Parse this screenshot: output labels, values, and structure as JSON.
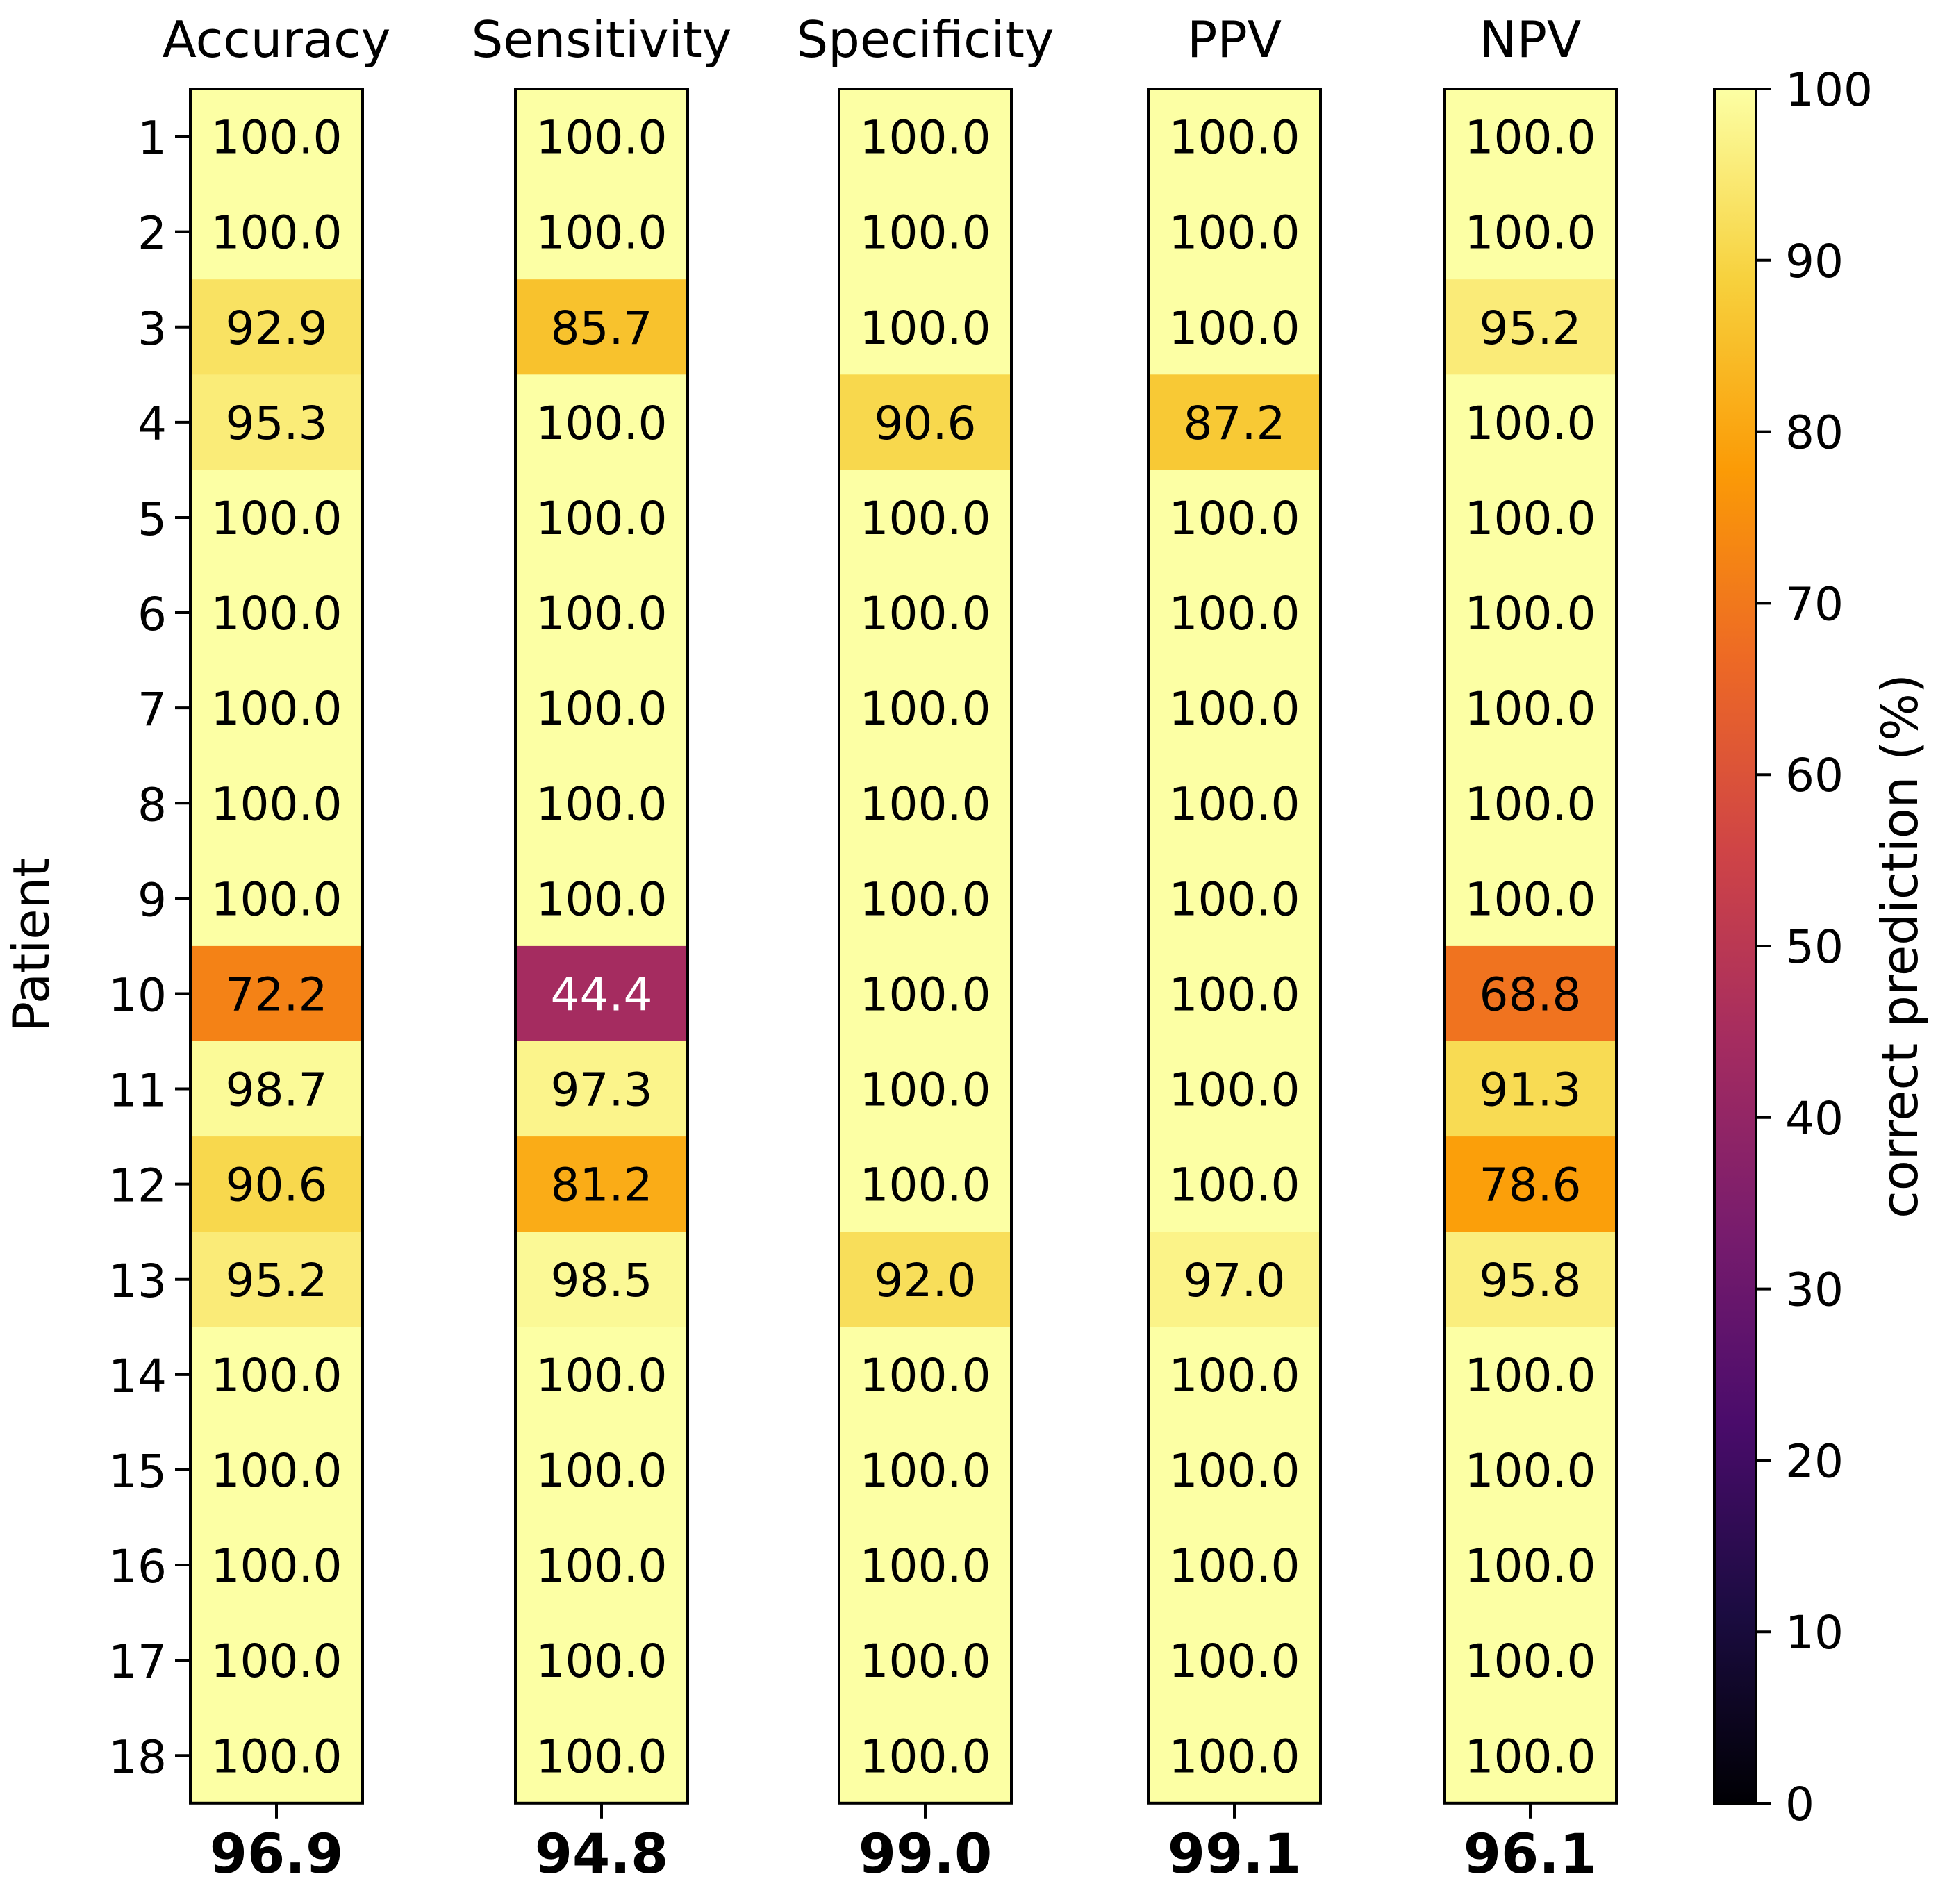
{
  "chart_data": {
    "type": "heatmap",
    "title": "",
    "ylabel": "Patient",
    "columns": [
      "Accuracy",
      "Sensitivity",
      "Specificity",
      "PPV",
      "NPV"
    ],
    "rows": [
      "1",
      "2",
      "3",
      "4",
      "5",
      "6",
      "7",
      "8",
      "9",
      "10",
      "11",
      "12",
      "13",
      "14",
      "15",
      "16",
      "17",
      "18"
    ],
    "values": {
      "Accuracy": [
        100.0,
        100.0,
        92.9,
        95.3,
        100.0,
        100.0,
        100.0,
        100.0,
        100.0,
        72.2,
        98.7,
        90.6,
        95.2,
        100.0,
        100.0,
        100.0,
        100.0,
        100.0
      ],
      "Sensitivity": [
        100.0,
        100.0,
        85.7,
        100.0,
        100.0,
        100.0,
        100.0,
        100.0,
        100.0,
        44.4,
        97.3,
        81.2,
        98.5,
        100.0,
        100.0,
        100.0,
        100.0,
        100.0
      ],
      "Specificity": [
        100.0,
        100.0,
        100.0,
        90.6,
        100.0,
        100.0,
        100.0,
        100.0,
        100.0,
        100.0,
        100.0,
        100.0,
        92.0,
        100.0,
        100.0,
        100.0,
        100.0,
        100.0
      ],
      "PPV": [
        100.0,
        100.0,
        100.0,
        87.2,
        100.0,
        100.0,
        100.0,
        100.0,
        100.0,
        100.0,
        100.0,
        100.0,
        97.0,
        100.0,
        100.0,
        100.0,
        100.0,
        100.0
      ],
      "NPV": [
        100.0,
        100.0,
        95.2,
        100.0,
        100.0,
        100.0,
        100.0,
        100.0,
        100.0,
        68.8,
        91.3,
        78.6,
        95.8,
        100.0,
        100.0,
        100.0,
        100.0,
        100.0
      ]
    },
    "summary": {
      "Accuracy": "96.9",
      "Sensitivity": "94.8",
      "Specificity": "99.0",
      "PPV": "99.1",
      "NPV": "96.1"
    },
    "colorbar": {
      "label": "correct  prediction (%)",
      "range": [
        0,
        100
      ],
      "ticks": [
        0,
        10,
        20,
        30,
        40,
        50,
        60,
        70,
        80,
        90,
        100
      ],
      "colormap": "inferno",
      "stops": [
        "#000004",
        "#1b0c41",
        "#4a0c6b",
        "#781c6d",
        "#a52c60",
        "#cf4446",
        "#ed6925",
        "#fb9b06",
        "#f7d13d",
        "#fcffa4"
      ]
    }
  }
}
